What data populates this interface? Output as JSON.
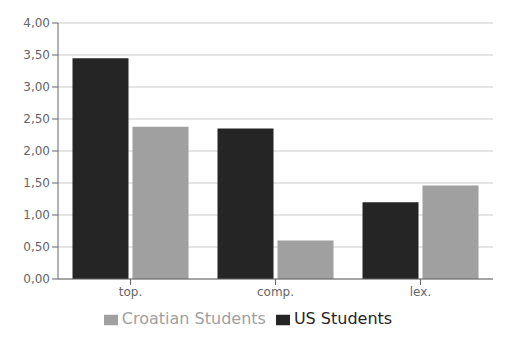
{
  "chart_data": {
    "type": "bar",
    "categories": [
      "top.",
      "comp.",
      "lex."
    ],
    "series": [
      {
        "name": "US Students",
        "color": "#252525",
        "values": [
          3.45,
          2.35,
          1.2
        ]
      },
      {
        "name": "Croatian Students",
        "color": "#a0a0a0",
        "values": [
          2.38,
          0.6,
          1.46
        ]
      }
    ],
    "ylim": [
      0,
      4.0
    ],
    "yticks": [
      {
        "value": 0.0,
        "label": "0,00"
      },
      {
        "value": 0.5,
        "label": "0,50"
      },
      {
        "value": 1.0,
        "label": "1,00"
      },
      {
        "value": 1.5,
        "label": "1,50"
      },
      {
        "value": 2.0,
        "label": "2,00"
      },
      {
        "value": 2.5,
        "label": "2,50"
      },
      {
        "value": 3.0,
        "label": "3,00"
      },
      {
        "value": 3.5,
        "label": "3,50"
      },
      {
        "value": 4.0,
        "label": "4,00"
      }
    ],
    "grid": true,
    "legend": "bottom"
  }
}
